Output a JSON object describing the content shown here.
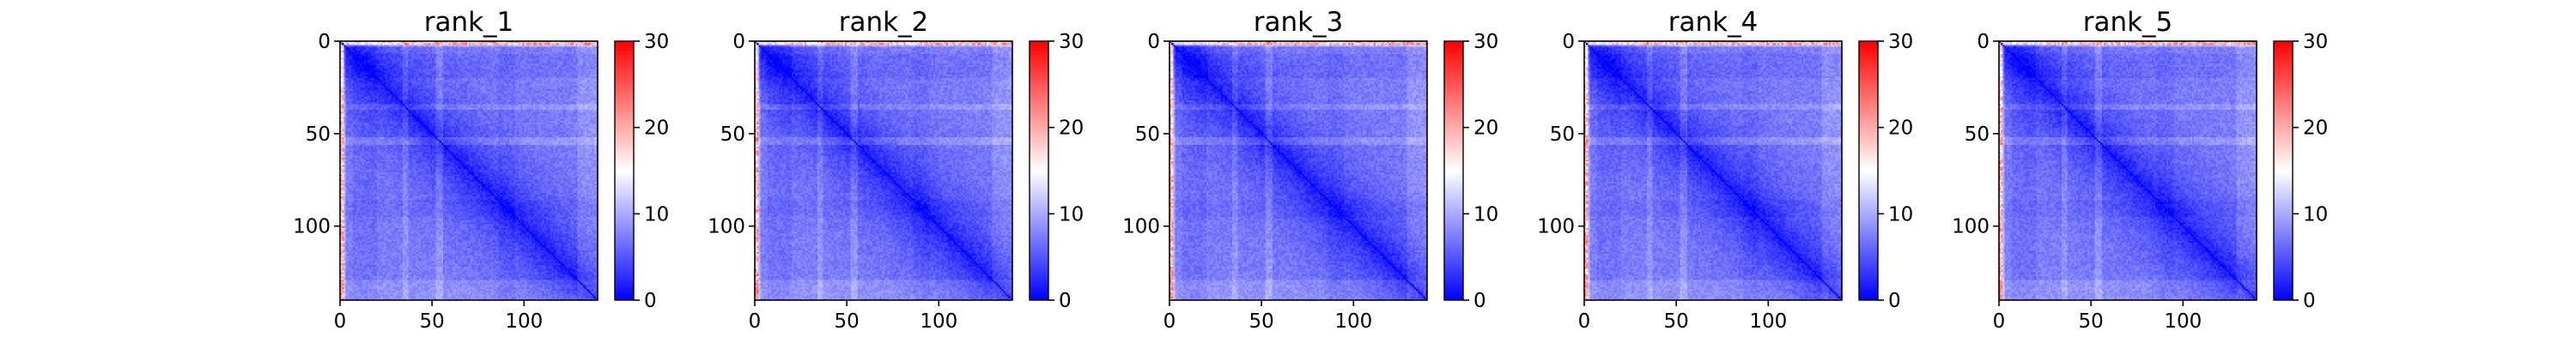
{
  "chart_data": [
    {
      "type": "heatmap",
      "title": "rank_1",
      "xlim": [
        0,
        140
      ],
      "ylim": [
        140,
        0
      ],
      "x_ticks": [
        0,
        50,
        100
      ],
      "y_ticks": [
        0,
        50,
        100
      ],
      "colorbar": {
        "range": [
          0,
          30
        ],
        "ticks": [
          0,
          10,
          20,
          30
        ],
        "colormap": "bwr"
      },
      "grid": false,
      "description_values": {
        "diagonal": 0,
        "typical_off_diagonal": [
          3,
          10
        ],
        "max_near_top_edge": 20
      }
    },
    {
      "type": "heatmap",
      "title": "rank_2",
      "xlim": [
        0,
        140
      ],
      "ylim": [
        140,
        0
      ],
      "x_ticks": [
        0,
        50,
        100
      ],
      "y_ticks": [
        0,
        50,
        100
      ],
      "colorbar": {
        "range": [
          0,
          30
        ],
        "ticks": [
          0,
          10,
          20,
          30
        ],
        "colormap": "bwr"
      },
      "grid": false,
      "description_values": {
        "diagonal": 0,
        "typical_off_diagonal": [
          3,
          10
        ],
        "max_near_top_edge": 20
      }
    },
    {
      "type": "heatmap",
      "title": "rank_3",
      "xlim": [
        0,
        140
      ],
      "ylim": [
        140,
        0
      ],
      "x_ticks": [
        0,
        50,
        100
      ],
      "y_ticks": [
        0,
        50,
        100
      ],
      "colorbar": {
        "range": [
          0,
          30
        ],
        "ticks": [
          0,
          10,
          20,
          30
        ],
        "colormap": "bwr"
      },
      "grid": false,
      "description_values": {
        "diagonal": 0,
        "typical_off_diagonal": [
          3,
          10
        ],
        "max_near_top_edge": 20
      }
    },
    {
      "type": "heatmap",
      "title": "rank_4",
      "xlim": [
        0,
        140
      ],
      "ylim": [
        140,
        0
      ],
      "x_ticks": [
        0,
        50,
        100
      ],
      "y_ticks": [
        0,
        50,
        100
      ],
      "colorbar": {
        "range": [
          0,
          30
        ],
        "ticks": [
          0,
          10,
          20,
          30
        ],
        "colormap": "bwr"
      },
      "grid": false,
      "description_values": {
        "diagonal": 0,
        "typical_off_diagonal": [
          3,
          10
        ],
        "max_near_top_edge": 20
      }
    },
    {
      "type": "heatmap",
      "title": "rank_5",
      "xlim": [
        0,
        140
      ],
      "ylim": [
        140,
        0
      ],
      "x_ticks": [
        0,
        50,
        100
      ],
      "y_ticks": [
        0,
        50,
        100
      ],
      "colorbar": {
        "range": [
          0,
          30
        ],
        "ticks": [
          0,
          10,
          20,
          30
        ],
        "colormap": "bwr"
      },
      "grid": false,
      "description_values": {
        "diagonal": 0,
        "typical_off_diagonal": [
          3,
          10
        ],
        "max_near_top_edge": 20
      }
    }
  ],
  "colors": {
    "low": "#0000ff",
    "mid": "#ffffff",
    "high": "#ff0000"
  }
}
